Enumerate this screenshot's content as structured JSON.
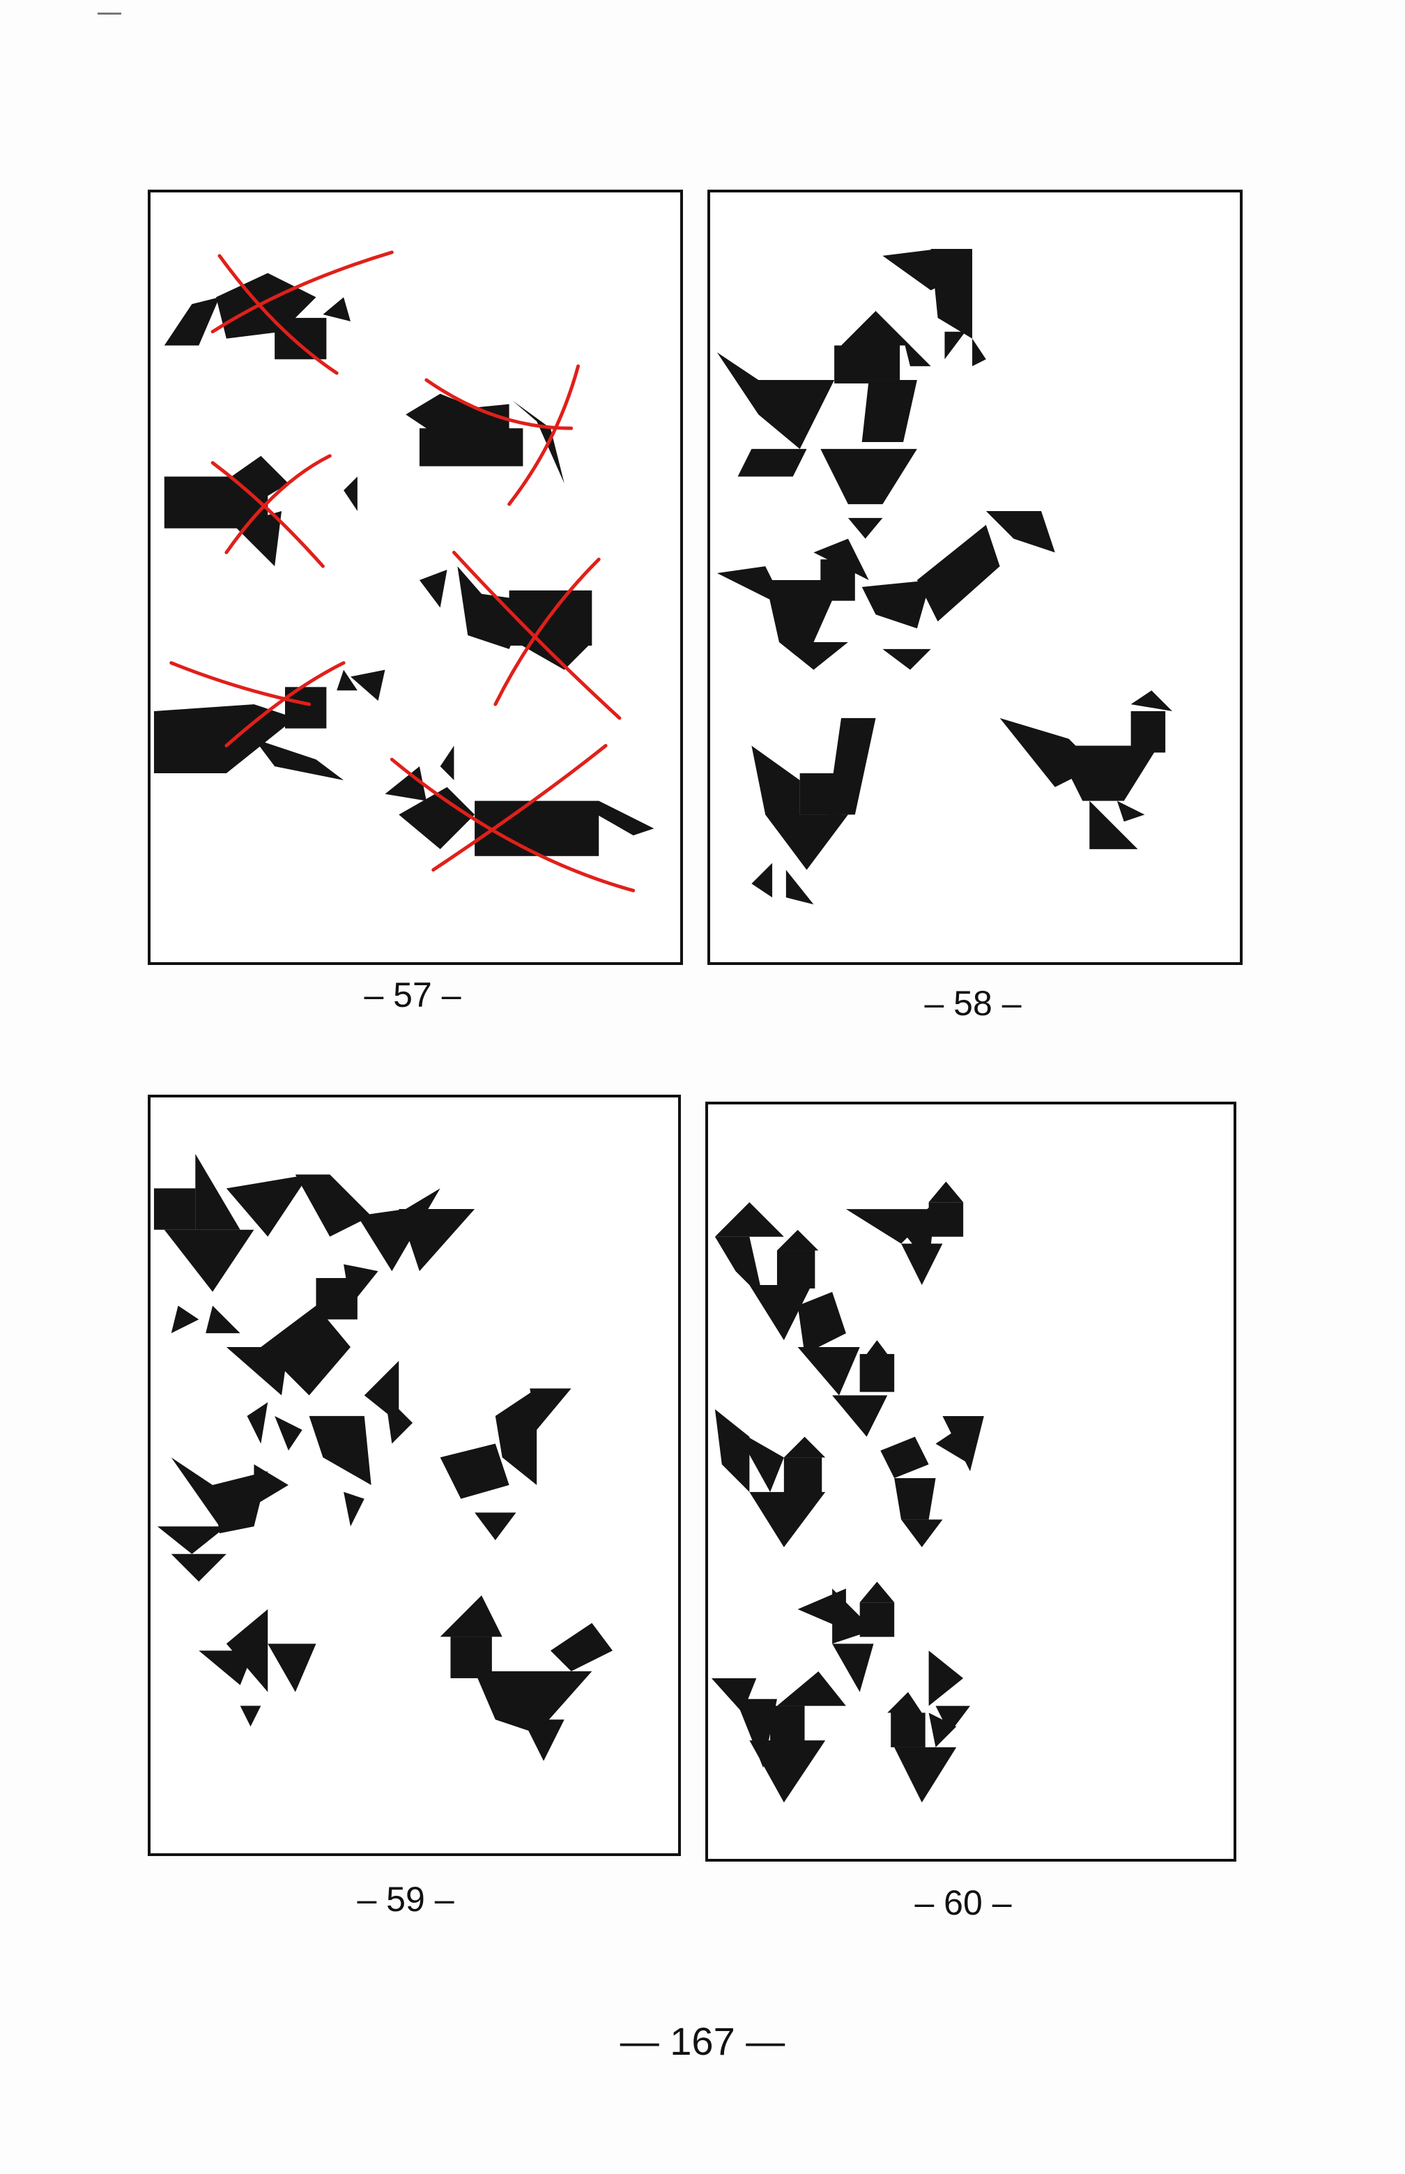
{
  "page": {
    "page_number": "— 167 —"
  },
  "panels": [
    {
      "id": "57",
      "label": "– 57 –",
      "crossed_out": true
    },
    {
      "id": "58",
      "label": "– 58 –",
      "crossed_out": false
    },
    {
      "id": "59",
      "label": "– 59 –",
      "crossed_out": false
    },
    {
      "id": "60",
      "label": "– 60 –",
      "crossed_out": false
    }
  ],
  "colors": {
    "ink": "#111111",
    "annotation": "#e0201a"
  }
}
